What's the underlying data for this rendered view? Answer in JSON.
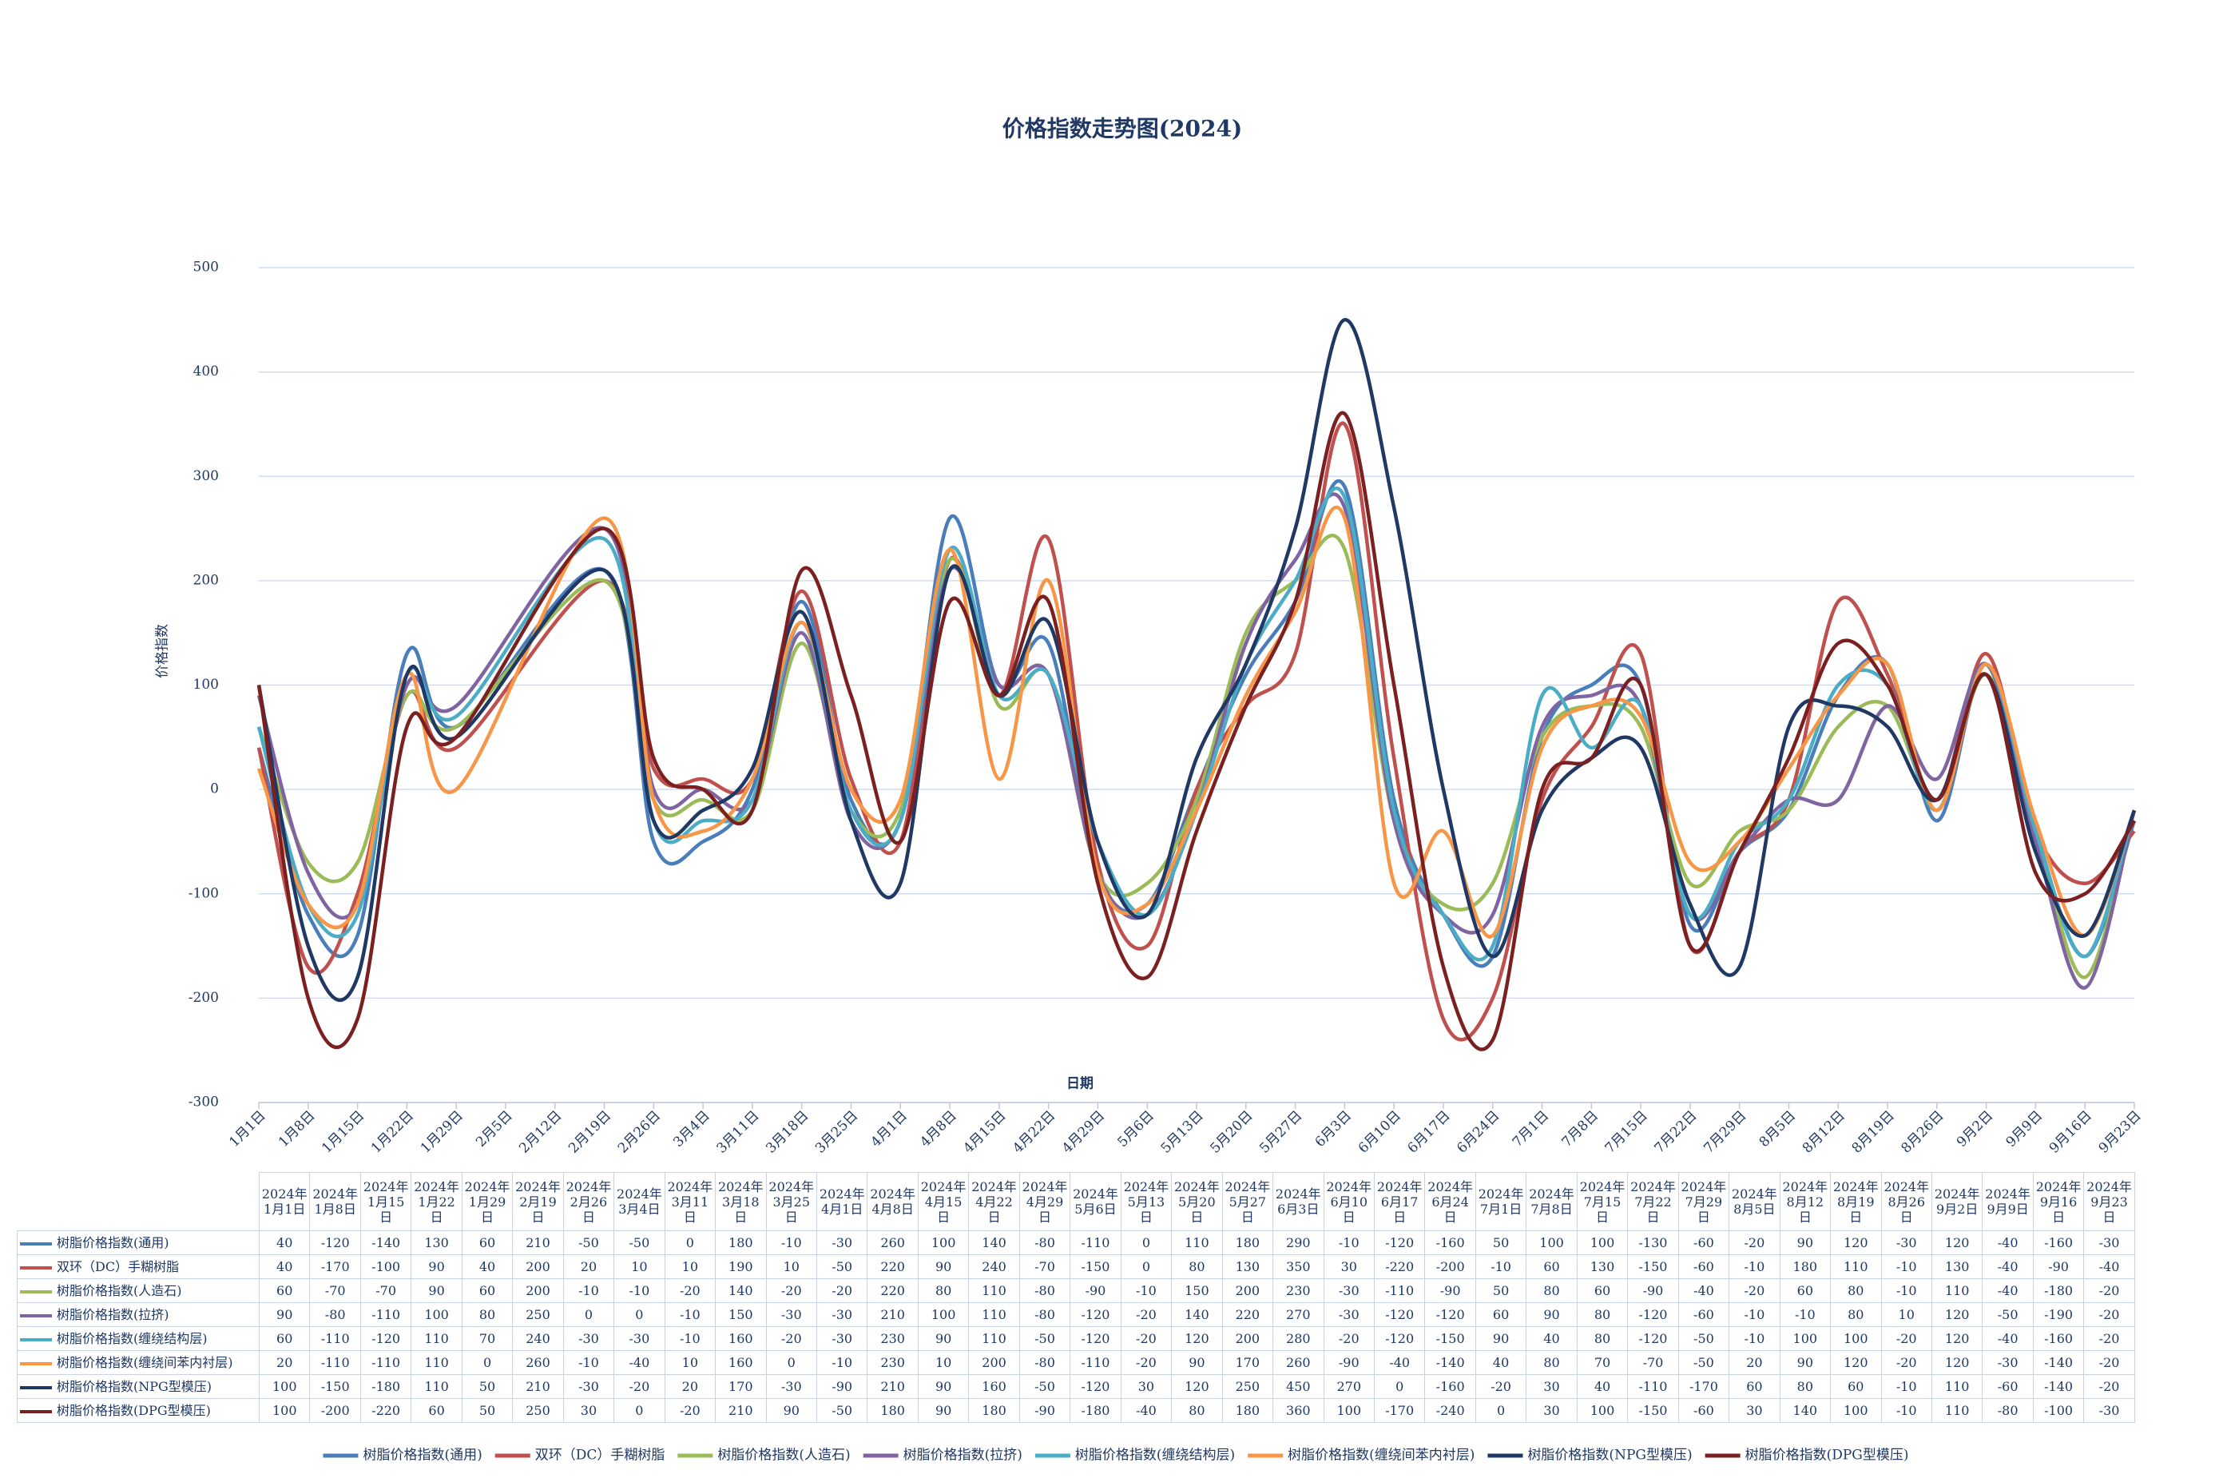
{
  "chart_data": {
    "type": "line",
    "title": "价格指数走势图(2024)",
    "y_label": "价格指数",
    "x_label": "日期",
    "x": [
      "2024年1月1日",
      "2024年1月8日",
      "2024年1月15日",
      "2024年1月22日",
      "2024年1月29日",
      "2024年2月19日",
      "2024年2月26日",
      "2024年3月4日",
      "2024年3月11日",
      "2024年3月18日",
      "2024年3月25日",
      "2024年4月1日",
      "2024年4月8日",
      "2024年4月15日",
      "2024年4月22日",
      "2024年4月29日",
      "2024年5月6日",
      "2024年5月13日",
      "2024年5月20日",
      "2024年5月27日",
      "2024年6月3日",
      "2024年6月10日",
      "2024年6月17日",
      "2024年6月24日",
      "2024年7月1日",
      "2024年7月8日",
      "2024年7月15日",
      "2024年7月22日",
      "2024年7月29日",
      "2024年8月5日",
      "2024年8月12日",
      "2024年8月19日",
      "2024年8月26日",
      "2024年9月2日",
      "2024年9月9日",
      "2024年9月16日",
      "2024年9月23日"
    ],
    "series": [
      {
        "name": "树脂价格指数(通用)",
        "color": "#4a7ebb",
        "values": [
          40,
          -120,
          -140,
          130,
          60,
          210,
          -50,
          -50,
          0,
          180,
          -10,
          -30,
          260,
          100,
          140,
          -80,
          -110,
          0,
          110,
          180,
          290,
          -10,
          -120,
          -160,
          50,
          100,
          100,
          -130,
          -60,
          -20,
          90,
          120,
          -30,
          120,
          -40,
          -160,
          -30
        ]
      },
      {
        "name": "双环（DC）手糊树脂",
        "color": "#c0504d",
        "values": [
          40,
          -170,
          -100,
          90,
          40,
          200,
          20,
          10,
          10,
          190,
          10,
          -50,
          220,
          90,
          240,
          -70,
          -150,
          0,
          80,
          130,
          350,
          30,
          -220,
          -200,
          -10,
          60,
          130,
          -150,
          -60,
          -10,
          180,
          110,
          -10,
          130,
          -40,
          -90,
          -40
        ]
      },
      {
        "name": "树脂价格指数(人造石)",
        "color": "#9bbb59",
        "values": [
          60,
          -70,
          -70,
          90,
          60,
          200,
          -10,
          -10,
          -20,
          140,
          -20,
          -20,
          220,
          80,
          110,
          -80,
          -90,
          -10,
          150,
          200,
          230,
          -30,
          -110,
          -90,
          50,
          80,
          60,
          -90,
          -40,
          -20,
          60,
          80,
          -10,
          110,
          -40,
          -180,
          -20
        ]
      },
      {
        "name": "树脂价格指数(拉挤)",
        "color": "#8064a2",
        "values": [
          90,
          -80,
          -110,
          100,
          80,
          250,
          0,
          0,
          -10,
          150,
          -30,
          -30,
          210,
          100,
          110,
          -80,
          -120,
          -20,
          140,
          220,
          270,
          -30,
          -120,
          -120,
          60,
          90,
          80,
          -120,
          -60,
          -10,
          -10,
          80,
          10,
          120,
          -50,
          -190,
          -20
        ]
      },
      {
        "name": "树脂价格指数(缠绕结构层)",
        "color": "#4bacc6",
        "values": [
          60,
          -110,
          -120,
          110,
          70,
          240,
          -30,
          -30,
          -10,
          160,
          -20,
          -30,
          230,
          90,
          110,
          -50,
          -120,
          -20,
          120,
          200,
          280,
          -20,
          -120,
          -150,
          90,
          40,
          80,
          -120,
          -50,
          -10,
          100,
          100,
          -20,
          120,
          -40,
          -160,
          -20
        ]
      },
      {
        "name": "树脂价格指数(缠绕间苯内衬层)",
        "color": "#f79646",
        "values": [
          20,
          -110,
          -110,
          110,
          0,
          260,
          -10,
          -40,
          10,
          160,
          0,
          -10,
          230,
          10,
          200,
          -80,
          -110,
          -20,
          90,
          170,
          260,
          -90,
          -40,
          -140,
          40,
          80,
          70,
          -70,
          -50,
          20,
          90,
          120,
          -20,
          120,
          -30,
          -140,
          -20
        ]
      },
      {
        "name": "树脂价格指数(NPG型模压)",
        "color": "#1f3864",
        "values": [
          100,
          -150,
          -180,
          110,
          50,
          210,
          -30,
          -20,
          20,
          170,
          -30,
          -90,
          210,
          90,
          160,
          -50,
          -120,
          30,
          120,
          250,
          450,
          270,
          0,
          -160,
          -20,
          30,
          40,
          -110,
          -170,
          60,
          80,
          60,
          -10,
          110,
          -60,
          -140,
          -20
        ]
      },
      {
        "name": "树脂价格指数(DPG型模压)",
        "color": "#7b2020",
        "values": [
          100,
          -200,
          -220,
          60,
          50,
          250,
          30,
          0,
          -20,
          210,
          90,
          -50,
          180,
          90,
          180,
          -90,
          -180,
          -40,
          80,
          180,
          360,
          100,
          -170,
          -240,
          0,
          30,
          100,
          -150,
          -60,
          30,
          140,
          100,
          -10,
          110,
          -80,
          -100,
          -30
        ]
      }
    ],
    "ylim": [
      -300,
      500
    ],
    "yticks": [
      -300,
      -200,
      -100,
      0,
      100,
      200,
      300,
      400,
      500
    ],
    "grid": true,
    "xlim": [
      "2024-01-01",
      "2024-09-23"
    ],
    "xticks": [
      {
        "value": "2024-01-01",
        "label": "1月1日"
      },
      {
        "value": "2024-01-08",
        "label": "1月8日"
      },
      {
        "value": "2024-01-15",
        "label": "1月15日"
      },
      {
        "value": "2024-01-22",
        "label": "1月22日"
      },
      {
        "value": "2024-01-29",
        "label": "1月29日"
      },
      {
        "value": "2024-02-05",
        "label": "2月5日"
      },
      {
        "value": "2024-02-12",
        "label": "2月12日"
      },
      {
        "value": "2024-02-19",
        "label": "2月19日"
      },
      {
        "value": "2024-02-26",
        "label": "2月26日"
      },
      {
        "value": "2024-03-04",
        "label": "3月4日"
      },
      {
        "value": "2024-03-11",
        "label": "3月11日"
      },
      {
        "value": "2024-03-18",
        "label": "3月18日"
      },
      {
        "value": "2024-03-25",
        "label": "3月25日"
      },
      {
        "value": "2024-04-01",
        "label": "4月1日"
      },
      {
        "value": "2024-04-08",
        "label": "4月8日"
      },
      {
        "value": "2024-04-15",
        "label": "4月15日"
      },
      {
        "value": "2024-04-22",
        "label": "4月22日"
      },
      {
        "value": "2024-04-29",
        "label": "4月29日"
      },
      {
        "value": "2024-05-06",
        "label": "5月6日"
      },
      {
        "value": "2024-05-13",
        "label": "5月13日"
      },
      {
        "value": "2024-05-20",
        "label": "5月20日"
      },
      {
        "value": "2024-05-27",
        "label": "5月27日"
      },
      {
        "value": "2024-06-03",
        "label": "6月3日"
      },
      {
        "value": "2024-06-10",
        "label": "6月10日"
      },
      {
        "value": "2024-06-17",
        "label": "6月17日"
      },
      {
        "value": "2024-06-24",
        "label": "6月24日"
      },
      {
        "value": "2024-07-01",
        "label": "7月1日"
      },
      {
        "value": "2024-07-08",
        "label": "7月8日"
      },
      {
        "value": "2024-07-15",
        "label": "7月15日"
      },
      {
        "value": "2024-07-22",
        "label": "7月22日"
      },
      {
        "value": "2024-07-29",
        "label": "7月29日"
      },
      {
        "value": "2024-08-05",
        "label": "8月5日"
      },
      {
        "value": "2024-08-12",
        "label": "8月12日"
      },
      {
        "value": "2024-08-19",
        "label": "8月19日"
      },
      {
        "value": "2024-08-26",
        "label": "8月26日"
      },
      {
        "value": "2024-09-02",
        "label": "9月2日"
      },
      {
        "value": "2024-09-09",
        "label": "9月9日"
      },
      {
        "value": "2024-09-16",
        "label": "9月16日"
      },
      {
        "value": "2024-09-23",
        "label": "9月23日"
      }
    ],
    "legend": "bottom"
  }
}
